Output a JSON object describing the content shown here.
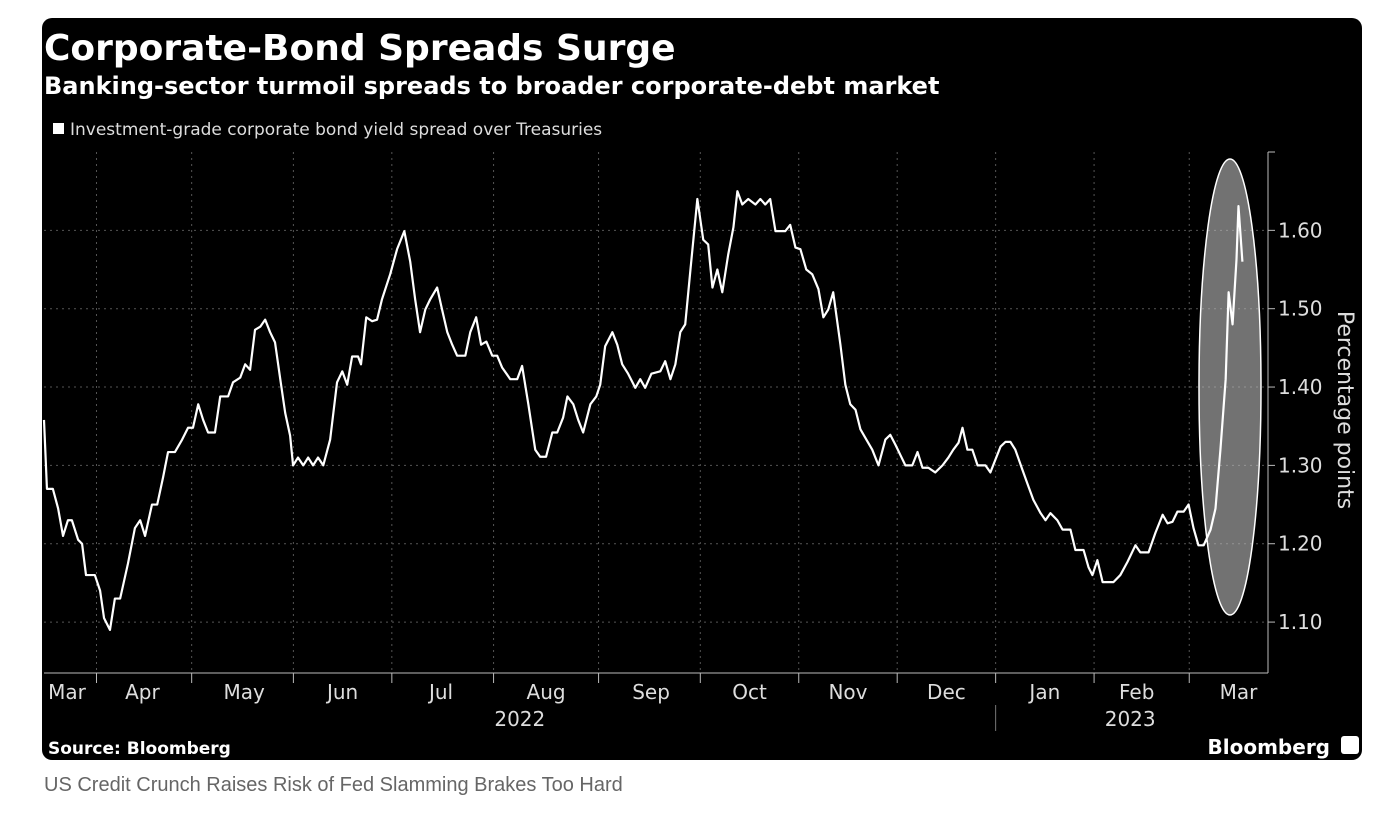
{
  "chart_data": {
    "type": "line",
    "title": "Corporate-Bond Spreads Surge",
    "subtitle": "Banking-sector turmoil spreads to broader corporate-debt market",
    "y_label": "Percentage points",
    "source": "Source: Bloomberg",
    "brand": "Bloomberg",
    "grid": true,
    "xlim": [
      0,
      373
    ],
    "ylim": [
      1.035,
      1.7
    ],
    "yticks": [
      {
        "value": 1.1,
        "label": "1.10"
      },
      {
        "value": 1.2,
        "label": "1.20"
      },
      {
        "value": 1.3,
        "label": "1.30"
      },
      {
        "value": 1.4,
        "label": "1.40"
      },
      {
        "value": 1.5,
        "label": "1.50"
      },
      {
        "value": 1.6,
        "label": "1.60"
      }
    ],
    "xticks": [
      {
        "value": 7,
        "label": "Mar"
      },
      {
        "value": 30,
        "label": "Apr"
      },
      {
        "value": 61,
        "label": "May"
      },
      {
        "value": 91,
        "label": "Jun"
      },
      {
        "value": 121,
        "label": "Jul"
      },
      {
        "value": 153,
        "label": "Aug"
      },
      {
        "value": 185,
        "label": "Sep"
      },
      {
        "value": 215,
        "label": "Oct"
      },
      {
        "value": 245,
        "label": "Nov"
      },
      {
        "value": 275,
        "label": "Dec"
      },
      {
        "value": 305,
        "label": "Jan"
      },
      {
        "value": 333,
        "label": "Feb"
      },
      {
        "value": 364,
        "label": "Mar"
      }
    ],
    "xgrid": [
      16,
      45,
      76,
      106,
      137,
      169,
      200,
      230,
      260,
      290,
      320,
      349
    ],
    "year_labels": [
      {
        "value": 145,
        "label": "2022"
      },
      {
        "value": 331,
        "label": "2023"
      }
    ],
    "year_break": 290,
    "x": [
      0,
      0.9,
      2.7,
      4.3,
      5.8,
      7.3,
      8.5,
      10.4,
      11.6,
      12.8,
      15.5,
      17.1,
      18.3,
      20.1,
      21.6,
      23.2,
      25.6,
      27.7,
      29.3,
      30.8,
      32.9,
      34.5,
      36.3,
      37.8,
      39.9,
      42.1,
      43.9,
      45.4,
      47.0,
      48.5,
      50.0,
      52.1,
      53.7,
      56.1,
      57.6,
      59.8,
      61.3,
      62.8,
      64.3,
      65.9,
      67.4,
      68.9,
      70.4,
      72.0,
      73.5,
      75.0,
      75.9,
      77.4,
      79.0,
      80.5,
      82.0,
      83.5,
      85.1,
      87.2,
      89.3,
      90.9,
      92.4,
      93.9,
      95.7,
      96.6,
      98.2,
      100.0,
      101.5,
      103.0,
      105.5,
      107.6,
      109.8,
      111.6,
      113.1,
      114.6,
      116.2,
      117.7,
      119.8,
      121.3,
      122.9,
      124.4,
      125.9,
      128.4,
      129.9,
      131.7,
      133.2,
      134.8,
      136.6,
      138.1,
      139.6,
      142.1,
      144.2,
      145.7,
      147.6,
      149.7,
      151.2,
      153.0,
      154.9,
      156.4,
      158.2,
      159.5,
      161.3,
      162.8,
      164.3,
      166.5,
      168.3,
      169.5,
      171.0,
      173.2,
      174.7,
      176.2,
      178.0,
      180.2,
      181.7,
      183.2,
      185.1,
      187.8,
      189.3,
      190.9,
      192.4,
      193.9,
      195.4,
      197.0,
      199.1,
      200.9,
      202.4,
      203.7,
      205.2,
      206.7,
      208.5,
      210.1,
      211.3,
      212.8,
      214.6,
      216.8,
      218.3,
      219.8,
      221.3,
      222.9,
      225.9,
      227.4,
      229.0,
      230.5,
      232.3,
      234.1,
      236.0,
      237.5,
      239.0,
      240.5,
      242.7,
      244.2,
      245.7,
      247.3,
      248.8,
      250.6,
      252.4,
      254.3,
      256.4,
      257.9,
      259.5,
      261.0,
      262.5,
      264.6,
      266.2,
      267.7,
      269.5,
      271.6,
      273.8,
      275.6,
      277.1,
      278.7,
      279.9,
      281.4,
      282.9,
      284.5,
      286.9,
      288.4,
      289.9,
      291.5,
      293.0,
      294.5,
      296.0,
      298.2,
      300.0,
      301.5,
      303.7,
      305.2,
      306.7,
      308.8,
      310.4,
      312.8,
      314.3,
      316.8,
      318.3,
      319.5,
      321.0,
      322.6,
      325.9,
      328.0,
      330.2,
      332.6,
      334.1,
      336.6,
      338.7,
      340.9,
      342.4,
      343.9,
      345.4,
      347.3,
      348.8,
      350.3,
      351.8,
      353.4,
      355.5,
      357.0,
      358.5,
      360.1,
      361.0,
      362.2,
      363.4,
      364.0,
      365.2
    ],
    "series": [
      {
        "name": "Investment-grade corporate bond yield spread over Treasuries",
        "color": "#ffffff",
        "values": [
          1.358,
          1.27,
          1.27,
          1.245,
          1.21,
          1.23,
          1.23,
          1.205,
          1.2,
          1.16,
          1.16,
          1.14,
          1.105,
          1.09,
          1.13,
          1.13,
          1.175,
          1.22,
          1.23,
          1.21,
          1.25,
          1.25,
          1.285,
          1.317,
          1.317,
          1.333,
          1.348,
          1.348,
          1.378,
          1.358,
          1.342,
          1.342,
          1.388,
          1.388,
          1.406,
          1.412,
          1.429,
          1.422,
          1.473,
          1.477,
          1.486,
          1.47,
          1.457,
          1.41,
          1.367,
          1.338,
          1.3,
          1.31,
          1.3,
          1.31,
          1.3,
          1.31,
          1.3,
          1.333,
          1.406,
          1.42,
          1.403,
          1.439,
          1.439,
          1.429,
          1.489,
          1.484,
          1.486,
          1.512,
          1.544,
          1.576,
          1.599,
          1.56,
          1.512,
          1.47,
          1.499,
          1.512,
          1.527,
          1.499,
          1.47,
          1.454,
          1.44,
          1.44,
          1.47,
          1.489,
          1.454,
          1.458,
          1.44,
          1.44,
          1.425,
          1.41,
          1.41,
          1.427,
          1.378,
          1.32,
          1.311,
          1.311,
          1.342,
          1.342,
          1.361,
          1.388,
          1.378,
          1.358,
          1.342,
          1.378,
          1.388,
          1.403,
          1.452,
          1.47,
          1.454,
          1.429,
          1.417,
          1.399,
          1.41,
          1.399,
          1.417,
          1.42,
          1.433,
          1.41,
          1.429,
          1.47,
          1.48,
          1.55,
          1.64,
          1.588,
          1.582,
          1.527,
          1.55,
          1.521,
          1.569,
          1.604,
          1.65,
          1.633,
          1.64,
          1.633,
          1.64,
          1.633,
          1.64,
          1.599,
          1.599,
          1.607,
          1.578,
          1.576,
          1.55,
          1.544,
          1.525,
          1.489,
          1.499,
          1.521,
          1.454,
          1.403,
          1.378,
          1.371,
          1.346,
          1.333,
          1.32,
          1.3,
          1.333,
          1.339,
          1.326,
          1.313,
          1.3,
          1.3,
          1.317,
          1.297,
          1.297,
          1.291,
          1.3,
          1.31,
          1.32,
          1.329,
          1.348,
          1.32,
          1.32,
          1.3,
          1.3,
          1.291,
          1.307,
          1.324,
          1.33,
          1.33,
          1.32,
          1.294,
          1.273,
          1.256,
          1.239,
          1.23,
          1.239,
          1.23,
          1.218,
          1.218,
          1.192,
          1.192,
          1.17,
          1.16,
          1.179,
          1.151,
          1.151,
          1.16,
          1.177,
          1.198,
          1.189,
          1.189,
          1.214,
          1.237,
          1.226,
          1.228,
          1.241,
          1.241,
          1.25,
          1.22,
          1.198,
          1.198,
          1.218,
          1.245,
          1.32,
          1.41,
          1.521,
          1.48,
          1.563,
          1.631,
          1.56
        ]
      }
    ]
  },
  "caption": "US Credit Crunch Raises Risk of Fed Slamming Brakes Too Hard"
}
